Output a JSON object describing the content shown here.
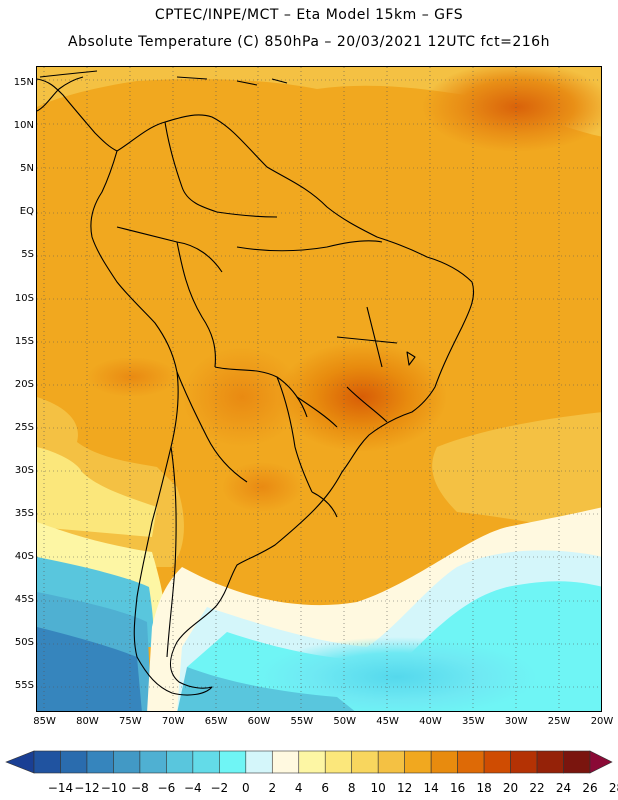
{
  "header": {
    "line1": "CPTEC/INPE/MCT –  Eta Model 15km – GFS",
    "line2": "Absolute Temperature (C) 850hPa – 20/03/2021 12UTC fct=216h"
  },
  "map": {
    "lon_range": [
      -86,
      -20
    ],
    "lat_range": [
      17,
      -58
    ],
    "lat_labels": [
      "15N",
      "10N",
      "5N",
      "EQ",
      "5S",
      "10S",
      "15S",
      "20S",
      "25S",
      "30S",
      "35S",
      "40S",
      "45S",
      "50S",
      "55S"
    ],
    "lon_labels": [
      "85W",
      "80W",
      "75W",
      "70W",
      "65W",
      "60W",
      "55W",
      "50W",
      "45W",
      "40W",
      "35W",
      "30W",
      "25W",
      "20W"
    ]
  },
  "colorbar": {
    "labels": [
      "-14",
      "-12",
      "-10",
      "-8",
      "-6",
      "-4",
      "-2",
      "0",
      "2",
      "4",
      "6",
      "8",
      "10",
      "12",
      "14",
      "16",
      "18",
      "20",
      "22",
      "24",
      "26",
      "28"
    ],
    "colors": [
      "#1a3f94",
      "#2053a0",
      "#2a6cae",
      "#3685bd",
      "#4299c5",
      "#4fb0d2",
      "#59c6dd",
      "#63dbe8",
      "#6ff5f5",
      "#d4f6fa",
      "#fff9e0",
      "#fdf6a4",
      "#fbe77b",
      "#f8d65e",
      "#f4c143",
      "#f1a81f",
      "#e88b0e",
      "#de6a06",
      "#cf4c02",
      "#b43204",
      "#952208",
      "#7a150e",
      "#8a0a36"
    ]
  }
}
